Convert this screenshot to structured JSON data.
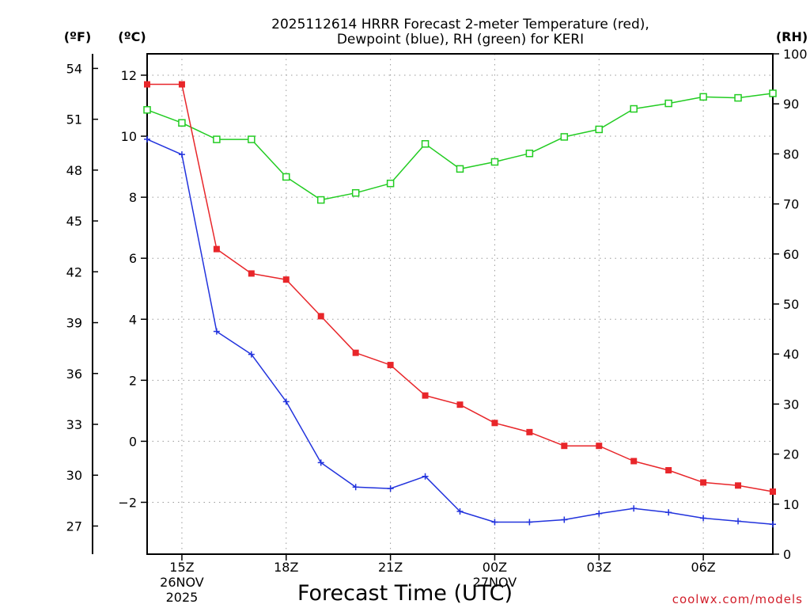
{
  "title": {
    "line1": "2025112614 HRRR Forecast 2-meter Temperature (red),",
    "line2": "Dewpoint (blue), RH (green) for KERI"
  },
  "axis_units": {
    "fahrenheit": "(ºF)",
    "celsius": "(ºC)",
    "rh": "(RH)"
  },
  "credit": "coolwx.com/models",
  "colors": {
    "temperature": "#e8262a",
    "dewpoint": "#2233dd",
    "rh": "#22cc22",
    "grid": "#9a9a9a"
  },
  "chart_data": {
    "type": "line",
    "title": "2025112614 HRRR Forecast 2-meter Temperature (red), Dewpoint (blue), RH (green) for KERI",
    "xlabel": "Forecast Time (UTC)",
    "ylabel_left": "(ºC)",
    "ylabel_left_outer": "(ºF)",
    "ylabel_right": "(RH)",
    "x_hours_utc": [
      14,
      15,
      16,
      17,
      18,
      19,
      20,
      21,
      22,
      23,
      24,
      25,
      26,
      27,
      28,
      29,
      30,
      31,
      32
    ],
    "x_tick_hours": [
      15,
      18,
      21,
      24,
      27,
      30
    ],
    "x_tick_labels": [
      [
        "15Z",
        "26NOV",
        "2025"
      ],
      [
        "18Z"
      ],
      [
        "21Z"
      ],
      [
        "00Z",
        "27NOV"
      ],
      [
        "03Z"
      ],
      [
        "06Z"
      ]
    ],
    "xlim": [
      14,
      32
    ],
    "ylim_celsius": [
      -3.7,
      12.7
    ],
    "celsius_ticks": [
      12,
      10,
      8,
      6,
      4,
      2,
      0,
      -2
    ],
    "celsius_tick_labels": [
      "12",
      "10",
      "8",
      "6",
      "4",
      "2",
      "0",
      "−2"
    ],
    "fahrenheit_ticks": [
      54,
      51,
      48,
      45,
      42,
      39,
      36,
      33,
      30,
      27
    ],
    "ylim_rh": [
      0,
      100
    ],
    "rh_ticks": [
      100,
      90,
      80,
      70,
      60,
      50,
      40,
      30,
      20,
      10,
      0
    ],
    "grid": true,
    "series": [
      {
        "name": "Temperature",
        "unit": "C",
        "marker": "filled-square",
        "values": [
          11.7,
          11.7,
          6.3,
          5.5,
          5.3,
          4.1,
          2.9,
          2.5,
          1.5,
          1.2,
          0.6,
          0.3,
          -0.15,
          -0.15,
          -0.65,
          -0.95,
          -1.35,
          -1.45,
          -1.65
        ]
      },
      {
        "name": "Dewpoint",
        "unit": "C",
        "marker": "plus",
        "values": [
          9.9,
          9.4,
          3.6,
          2.85,
          1.3,
          -0.7,
          -1.5,
          -1.55,
          -1.15,
          -2.3,
          -2.65,
          -2.65,
          -2.57,
          -2.37,
          -2.2,
          -2.33,
          -2.52,
          -2.62,
          -2.72
        ]
      },
      {
        "name": "RH",
        "unit": "%",
        "marker": "open-square",
        "values": [
          88.8,
          86.2,
          82.9,
          82.9,
          75.4,
          70.8,
          72.2,
          74.1,
          82.0,
          77.0,
          78.4,
          80.1,
          83.4,
          84.9,
          89.0,
          90.1,
          91.4,
          91.2,
          92.1
        ]
      }
    ]
  }
}
